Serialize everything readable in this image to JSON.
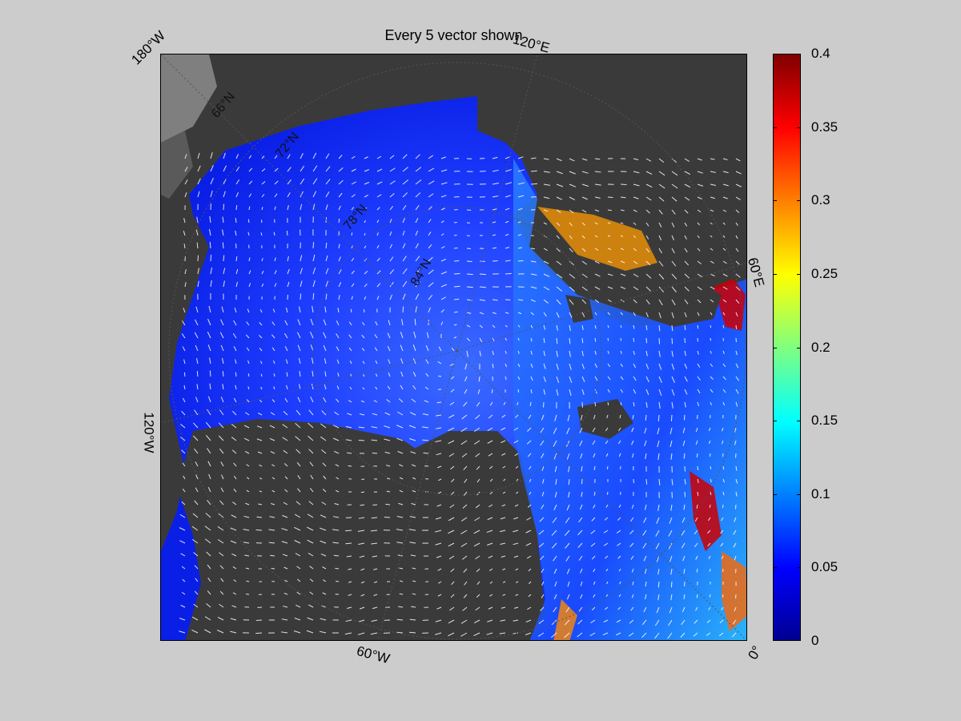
{
  "title": "Every 5 vector shown",
  "lon_labels": [
    {
      "text": "180°W"
    },
    {
      "text": "120°E"
    },
    {
      "text": "60°E"
    },
    {
      "text": "0°"
    },
    {
      "text": "60°W"
    },
    {
      "text": "120°W"
    }
  ],
  "lat_labels": [
    "66°N",
    "72°N",
    "78°N",
    "84°N"
  ],
  "colorbar": {
    "min": 0,
    "max": 0.4,
    "ticks": [
      "0",
      "0.05",
      "0.1",
      "0.15",
      "0.2",
      "0.25",
      "0.3",
      "0.35",
      "0.4"
    ],
    "colormap": "jet"
  },
  "colors": {
    "figure_bg": "#cccccc",
    "land": "#3a3a3a",
    "ice_sheet": "#7f7f7f",
    "vectors": "#ffffff"
  }
}
